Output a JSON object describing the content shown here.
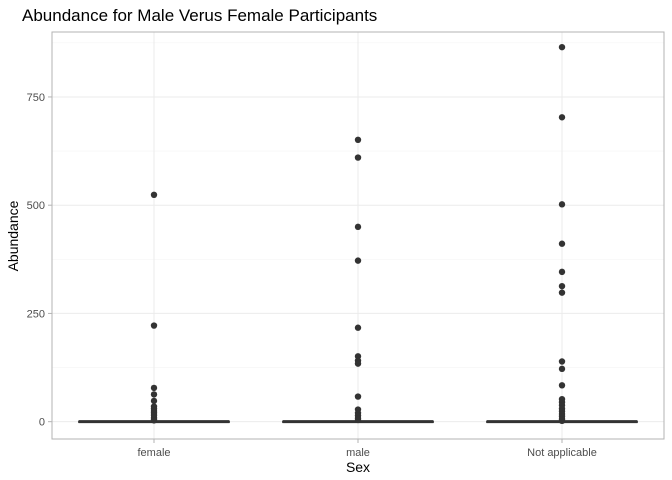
{
  "chart_data": {
    "type": "box",
    "title": "Abundance for Male Verus Female Participants",
    "xlabel": "Sex",
    "ylabel": "Abundance",
    "categories": [
      "female",
      "male",
      "Not applicable"
    ],
    "ylim": [
      -40,
      900
    ],
    "yticks": [
      0,
      250,
      500,
      750
    ],
    "grid": true,
    "series": [
      {
        "category": "female",
        "median": 0,
        "q1": 0,
        "q3": 0,
        "outliers": [
          524,
          222,
          78,
          63,
          48,
          35,
          30,
          25,
          20,
          15,
          10,
          6,
          3
        ]
      },
      {
        "category": "male",
        "median": 0,
        "q1": 0,
        "q3": 0,
        "outliers": [
          651,
          610,
          450,
          372,
          217,
          151,
          141,
          134,
          58,
          28,
          20,
          14,
          8,
          4
        ]
      },
      {
        "category": "Not applicable",
        "median": 0,
        "q1": 0,
        "q3": 0,
        "outliers": [
          865,
          703,
          502,
          411,
          346,
          313,
          298,
          139,
          122,
          84,
          52,
          45,
          38,
          30,
          24,
          18,
          12,
          6,
          2
        ]
      }
    ]
  }
}
